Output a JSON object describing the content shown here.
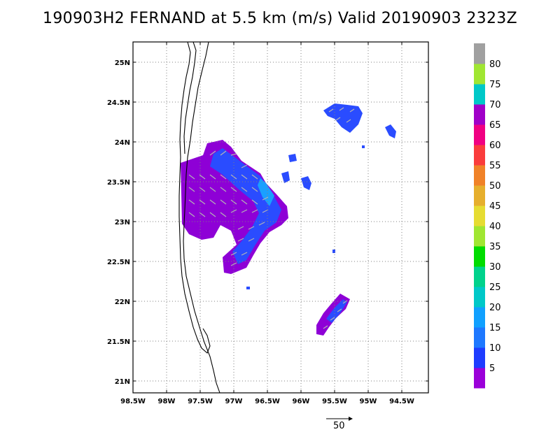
{
  "title": "190903H2 FERNAND at 5.5 km (m/s) Valid 20190903 2323Z",
  "map": {
    "lon_labels": [
      "98.5W",
      "98W",
      "97.5W",
      "97W",
      "96.5W",
      "96W",
      "95.5W",
      "95W",
      "94.5W"
    ],
    "lat_labels": [
      "25N",
      "24.5N",
      "24N",
      "23.5N",
      "23N",
      "22.5N",
      "22N",
      "21.5N",
      "21N"
    ],
    "grid": "dotted"
  },
  "colorbar": {
    "labels": [
      "5",
      "10",
      "15",
      "20",
      "25",
      "30",
      "35",
      "40",
      "45",
      "50",
      "55",
      "60",
      "65",
      "70",
      "75",
      "80"
    ],
    "colors": [
      "#9b00d9",
      "#1e3cff",
      "#1e78ff",
      "#10a0ff",
      "#00c8c8",
      "#00d28c",
      "#00dc00",
      "#a0e632",
      "#e6dc32",
      "#e6af2d",
      "#f08228",
      "#fa3c3c",
      "#f00082",
      "#a000c8",
      "#00c8c8",
      "#a0e632",
      "#a0a0a0"
    ]
  },
  "reference_vector": {
    "label": "50"
  }
}
